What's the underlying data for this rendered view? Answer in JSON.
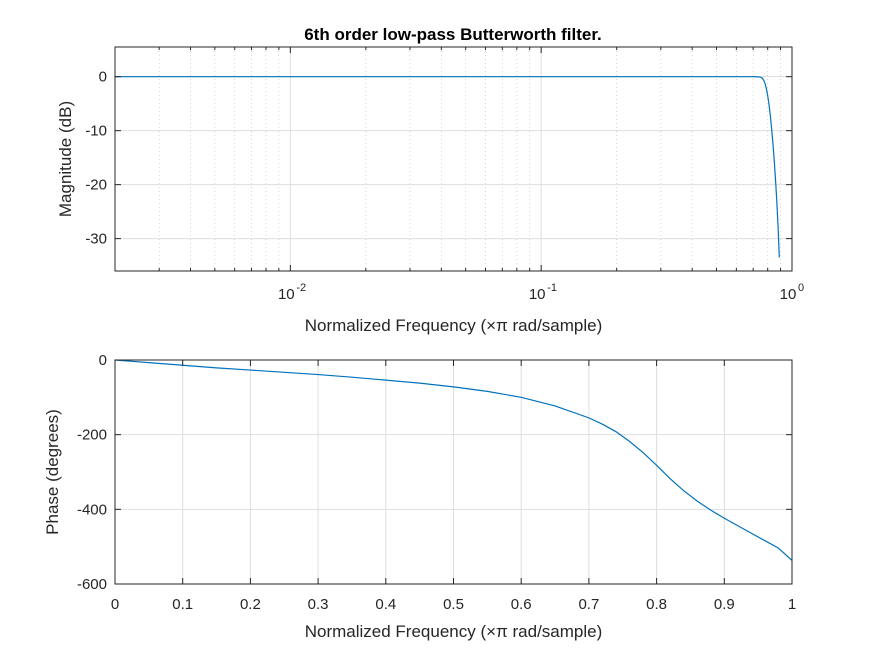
{
  "title": "6th order low-pass Butterworth filter.",
  "chart_data": [
    {
      "type": "line",
      "scale_x": "log",
      "grid": true,
      "xlabel": "Normalized Frequency  (×π rad/sample)",
      "ylabel": "Magnitude (dB)",
      "xlim": [
        0.002,
        1
      ],
      "ylim": [
        -36,
        5.5
      ],
      "xticks": [
        {
          "value": 0.01,
          "base": "10",
          "exp": "-2"
        },
        {
          "value": 0.1,
          "base": "10",
          "exp": "-1"
        },
        {
          "value": 1,
          "base": "10",
          "exp": "0"
        }
      ],
      "yticks": [
        0,
        -10,
        -20,
        -30
      ],
      "series": [
        {
          "color": "#0072bd",
          "x": [
            0.002,
            0.01,
            0.1,
            0.3,
            0.5,
            0.6,
            0.7,
            0.72,
            0.74,
            0.75,
            0.76,
            0.77,
            0.78,
            0.79,
            0.8,
            0.81,
            0.82,
            0.83,
            0.84,
            0.85,
            0.86,
            0.87,
            0.88,
            0.89
          ],
          "y": [
            0,
            0,
            0,
            0,
            0,
            0,
            0,
            -0.01,
            -0.05,
            -0.1,
            -0.25,
            -0.6,
            -1.2,
            -2.2,
            -3.5,
            -5.2,
            -7.3,
            -9.8,
            -12.6,
            -15.7,
            -19.2,
            -23.2,
            -27.8,
            -33.5
          ]
        }
      ]
    },
    {
      "type": "line",
      "grid": true,
      "xlabel": "Normalized Frequency  (×π rad/sample)",
      "ylabel": "Phase (degrees)",
      "xlim": [
        0,
        1
      ],
      "ylim": [
        -600,
        0
      ],
      "xticks": [
        "0",
        "0.1",
        "0.2",
        "0.3",
        "0.4",
        "0.5",
        "0.6",
        "0.7",
        "0.8",
        "0.9",
        "1"
      ],
      "yticks": [
        0,
        -200,
        -400,
        -600
      ],
      "series": [
        {
          "color": "#0072bd",
          "x": [
            0,
            0.05,
            0.1,
            0.15,
            0.2,
            0.25,
            0.3,
            0.35,
            0.4,
            0.45,
            0.5,
            0.55,
            0.6,
            0.65,
            0.7,
            0.72,
            0.74,
            0.76,
            0.78,
            0.8,
            0.82,
            0.84,
            0.86,
            0.88,
            0.9,
            0.92,
            0.94,
            0.96,
            0.98,
            1.0
          ],
          "y": [
            0,
            -7,
            -14,
            -21,
            -27,
            -33,
            -39,
            -46,
            -54,
            -62,
            -72,
            -84,
            -100,
            -123,
            -155,
            -172,
            -192,
            -218,
            -248,
            -282,
            -318,
            -350,
            -378,
            -402,
            -424,
            -444,
            -464,
            -484,
            -504,
            -537
          ]
        }
      ]
    }
  ]
}
